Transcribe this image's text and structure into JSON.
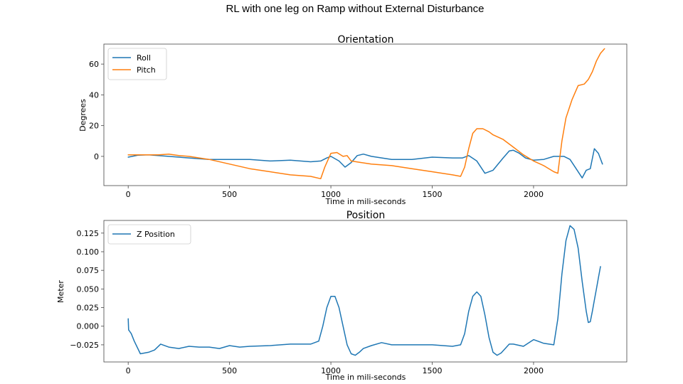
{
  "figure": {
    "suptitle": "RL with one leg on Ramp without External Disturbance"
  },
  "chart_data": [
    {
      "type": "line",
      "title": "Orientation",
      "xlabel": "Time in mili-seconds",
      "ylabel": "Degrees",
      "xlim": [
        -120,
        2460
      ],
      "ylim": [
        -19,
        73
      ],
      "xticks": [
        0,
        500,
        1000,
        1500,
        2000
      ],
      "yticks": [
        0,
        20,
        40,
        60
      ],
      "legend_position": "top-left",
      "grid": false,
      "series": [
        {
          "name": "Roll",
          "color": "#1f77b4",
          "x": [
            0,
            50,
            100,
            200,
            300,
            400,
            500,
            600,
            700,
            800,
            900,
            950,
            980,
            1000,
            1040,
            1070,
            1100,
            1130,
            1160,
            1200,
            1300,
            1400,
            1500,
            1600,
            1650,
            1680,
            1720,
            1760,
            1800,
            1850,
            1880,
            1900,
            1930,
            1960,
            2000,
            2050,
            2100,
            2150,
            2180,
            2210,
            2240,
            2260,
            2280,
            2300,
            2320,
            2340
          ],
          "y": [
            -0.5,
            0.8,
            1,
            0,
            -1,
            -2,
            -2,
            -2,
            -3,
            -2.5,
            -3.5,
            -3,
            -1,
            0,
            -3,
            -7,
            -4,
            0.5,
            1.5,
            0,
            -2,
            -2,
            -0.5,
            -1,
            -1,
            0.5,
            -3,
            -11,
            -9,
            -1,
            3.5,
            4,
            2,
            -1,
            -2.5,
            -2,
            0,
            0,
            -2,
            -8,
            -14,
            -9,
            -8,
            5,
            2,
            -5
          ]
        },
        {
          "name": "Pitch",
          "color": "#ff7f0e",
          "x": [
            0,
            50,
            100,
            150,
            200,
            250,
            300,
            350,
            400,
            500,
            600,
            700,
            800,
            900,
            950,
            970,
            1000,
            1030,
            1060,
            1080,
            1100,
            1150,
            1200,
            1300,
            1400,
            1500,
            1600,
            1640,
            1660,
            1680,
            1700,
            1720,
            1750,
            1780,
            1800,
            1850,
            1900,
            1950,
            2000,
            2050,
            2100,
            2120,
            2140,
            2160,
            2190,
            2220,
            2250,
            2270,
            2290,
            2310,
            2330,
            2350
          ],
          "y": [
            1,
            1,
            1,
            1,
            1.5,
            0.5,
            0,
            -1,
            -2,
            -5,
            -8,
            -10,
            -12,
            -13,
            -14.5,
            -7,
            2,
            2.5,
            0,
            0.5,
            -3,
            -4,
            -5,
            -6,
            -8,
            -10,
            -12,
            -13,
            -7,
            5,
            15,
            18,
            18,
            16,
            14,
            11,
            6,
            1,
            -3,
            -6,
            -10,
            -11,
            10,
            25,
            37,
            46,
            47,
            50,
            55,
            62,
            67,
            70
          ]
        }
      ]
    },
    {
      "type": "line",
      "title": "Position",
      "xlabel": "Time in mili-seconds",
      "ylabel": "Meter",
      "xlim": [
        -120,
        2460
      ],
      "ylim": [
        -0.048,
        0.142
      ],
      "xticks": [
        0,
        500,
        1000,
        1500,
        2000
      ],
      "yticks": [
        -0.025,
        0.0,
        0.025,
        0.05,
        0.075,
        0.1,
        0.125
      ],
      "ytick_labels": [
        "−0.025",
        "0.000",
        "0.025",
        "0.050",
        "0.075",
        "0.100",
        "0.125"
      ],
      "legend_position": "top-left",
      "grid": false,
      "series": [
        {
          "name": "Z Position",
          "color": "#1f77b4",
          "x": [
            0,
            2,
            5,
            15,
            30,
            60,
            100,
            130,
            160,
            200,
            250,
            300,
            350,
            400,
            450,
            500,
            550,
            600,
            700,
            800,
            900,
            940,
            960,
            980,
            1000,
            1020,
            1040,
            1060,
            1080,
            1100,
            1120,
            1140,
            1160,
            1200,
            1250,
            1300,
            1400,
            1500,
            1600,
            1640,
            1660,
            1680,
            1700,
            1720,
            1740,
            1760,
            1780,
            1800,
            1820,
            1840,
            1860,
            1880,
            1900,
            1950,
            2000,
            2050,
            2100,
            2120,
            2140,
            2160,
            2180,
            2200,
            2220,
            2240,
            2260,
            2270,
            2280,
            2290,
            2300,
            2310,
            2320,
            2330
          ],
          "y": [
            0.01,
            -0.005,
            -0.006,
            -0.01,
            -0.02,
            -0.037,
            -0.035,
            -0.032,
            -0.024,
            -0.028,
            -0.03,
            -0.027,
            -0.028,
            -0.028,
            -0.03,
            -0.026,
            -0.028,
            -0.027,
            -0.026,
            -0.024,
            -0.024,
            -0.02,
            0,
            0.025,
            0.04,
            0.04,
            0.025,
            0,
            -0.025,
            -0.037,
            -0.039,
            -0.035,
            -0.03,
            -0.026,
            -0.022,
            -0.025,
            -0.025,
            -0.025,
            -0.027,
            -0.025,
            -0.01,
            0.02,
            0.04,
            0.046,
            0.04,
            0.015,
            -0.015,
            -0.035,
            -0.039,
            -0.036,
            -0.03,
            -0.024,
            -0.024,
            -0.027,
            -0.018,
            -0.023,
            -0.025,
            0.01,
            0.07,
            0.115,
            0.135,
            0.13,
            0.105,
            0.06,
            0.02,
            0.005,
            0.006,
            0.02,
            0.035,
            0.05,
            0.065,
            0.08
          ]
        }
      ]
    }
  ]
}
